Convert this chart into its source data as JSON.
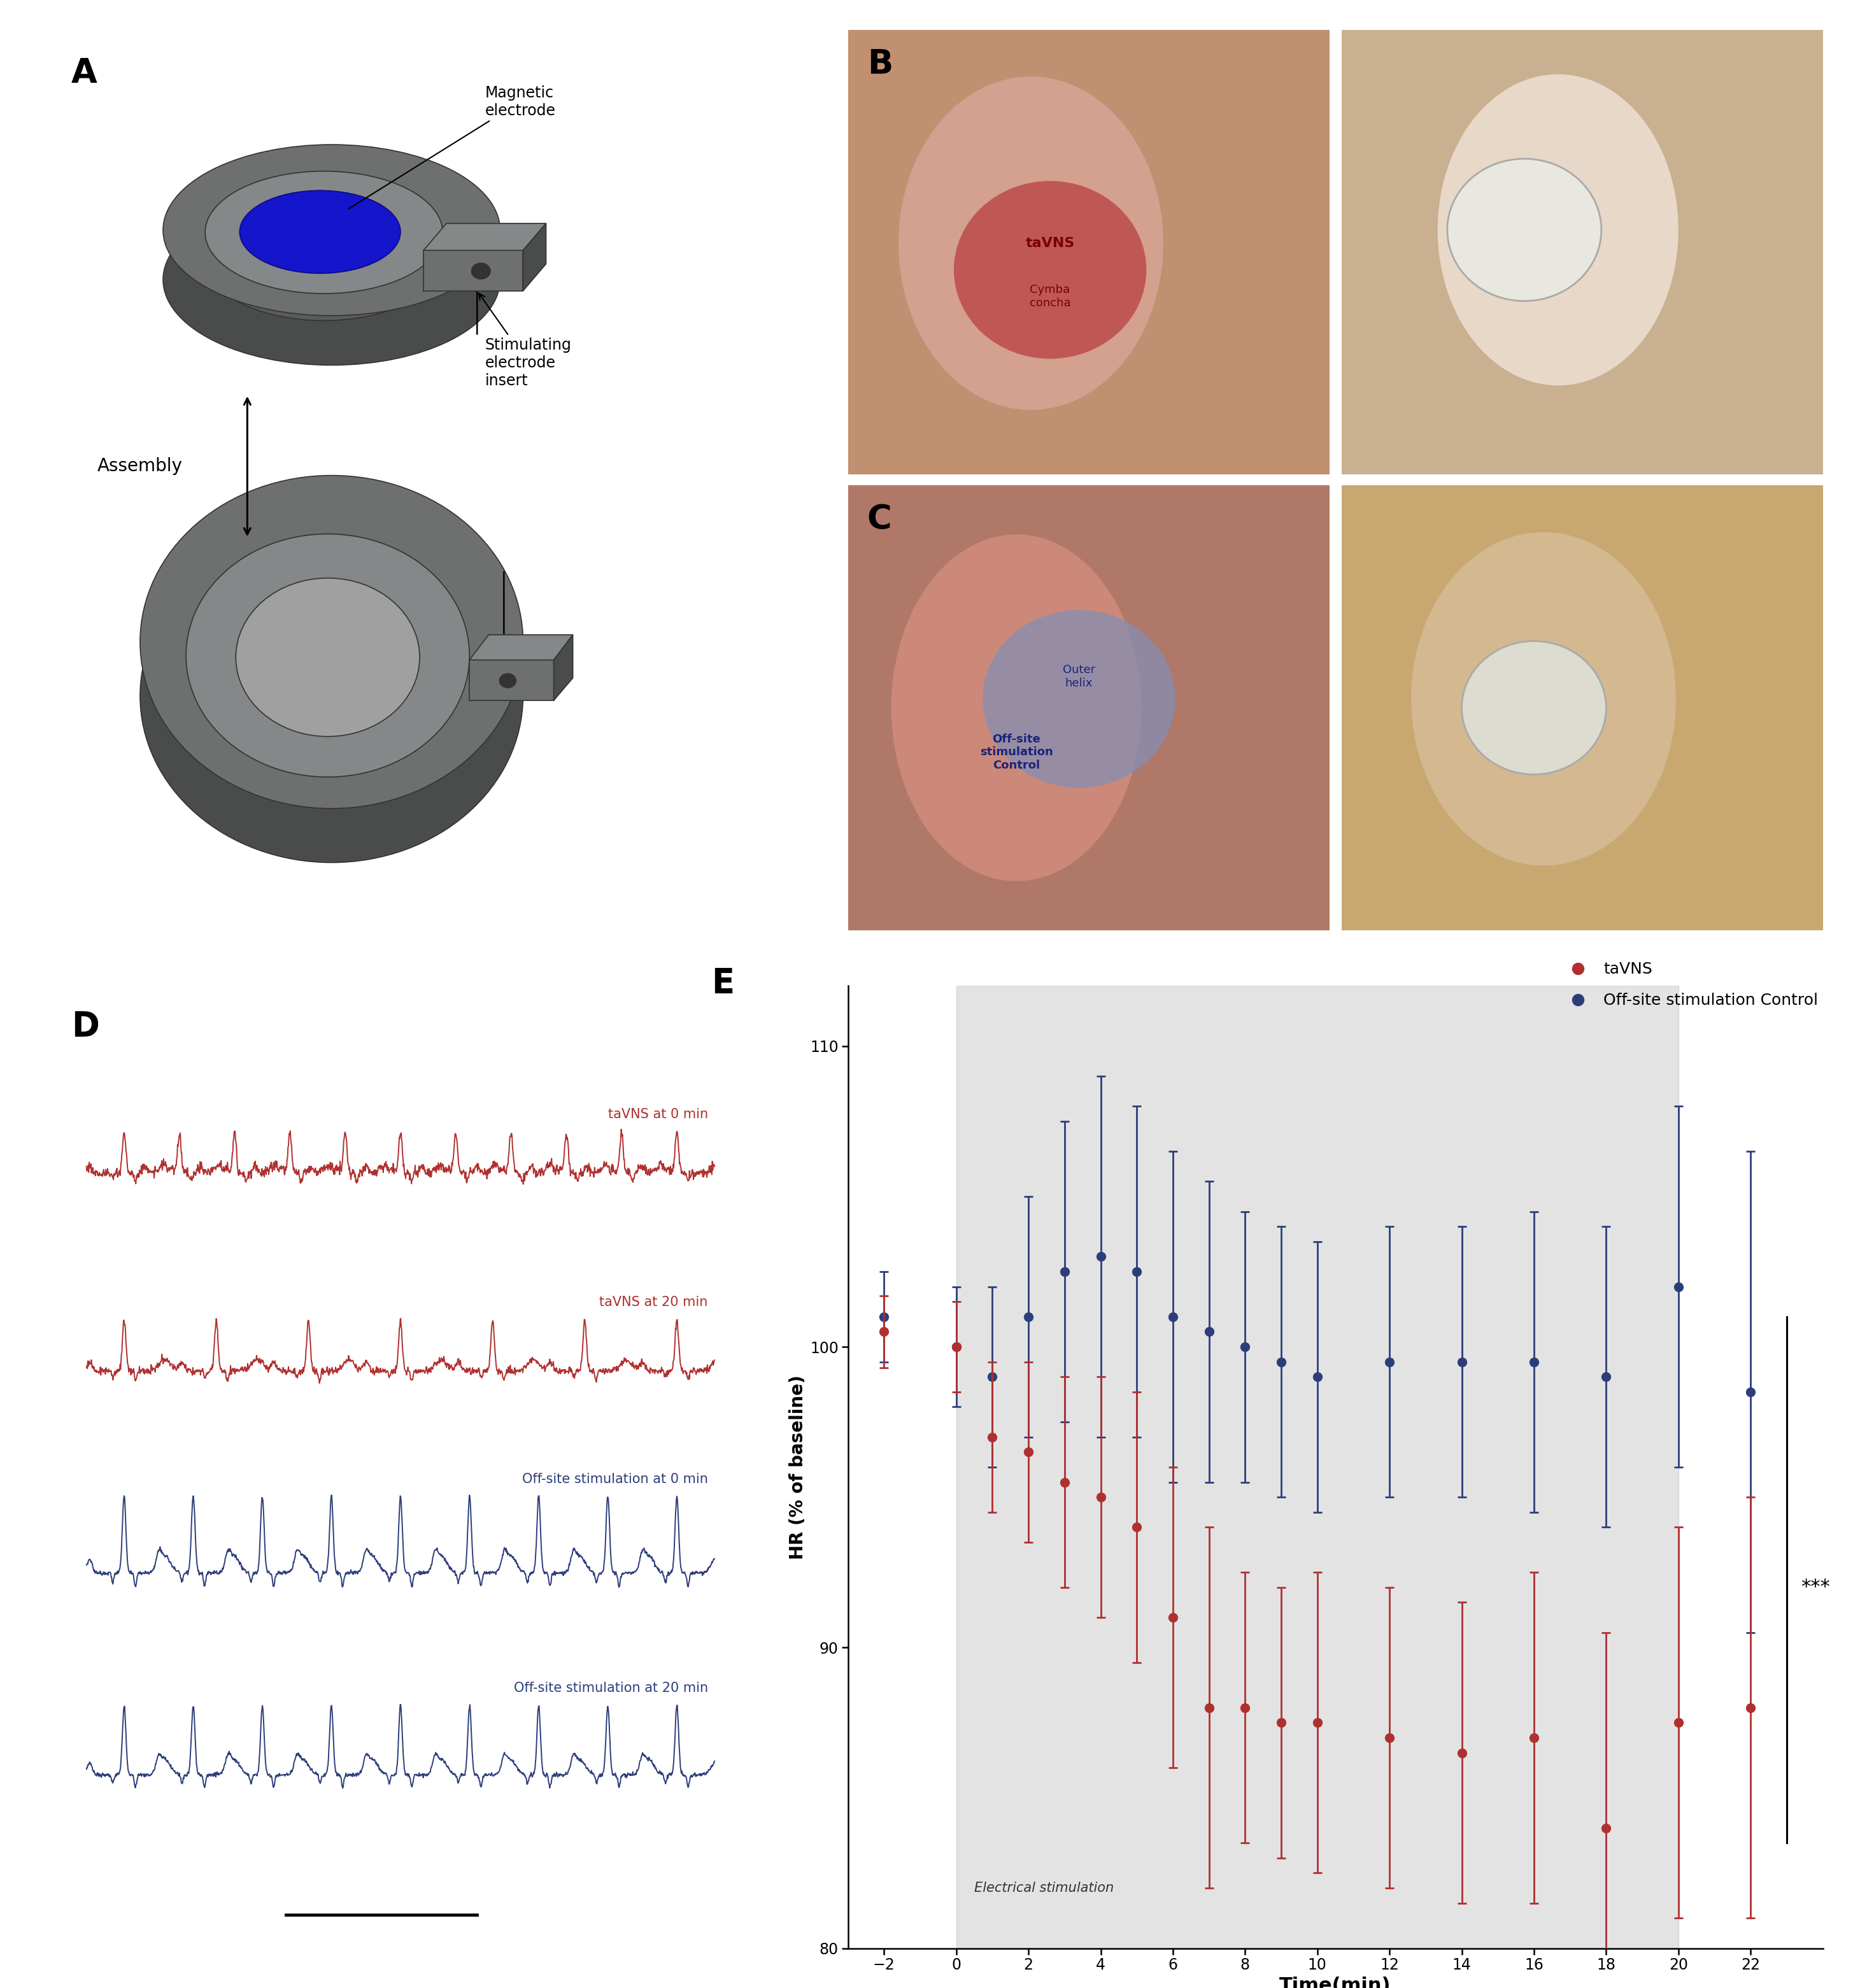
{
  "panel_labels": [
    "A",
    "B",
    "C",
    "D",
    "E"
  ],
  "panel_label_fontsize": 38,
  "panel_label_fontweight": "bold",
  "background_color": "#ffffff",
  "tavns_color": "#B03030",
  "control_color": "#2C3E7A",
  "time_points": [
    -2,
    0,
    1,
    2,
    3,
    4,
    5,
    6,
    7,
    8,
    9,
    10,
    12,
    14,
    16,
    18,
    20,
    22
  ],
  "tavns_hr": [
    100.5,
    100.0,
    97.0,
    96.5,
    95.5,
    95.0,
    94.0,
    91.0,
    88.0,
    88.0,
    87.5,
    87.5,
    87.0,
    86.5,
    87.0,
    84.0,
    87.5,
    88.0
  ],
  "tavns_err": [
    1.2,
    1.5,
    2.5,
    3.0,
    3.5,
    4.0,
    4.5,
    5.0,
    6.0,
    4.5,
    4.5,
    5.0,
    5.0,
    5.0,
    5.5,
    6.5,
    6.5,
    7.0
  ],
  "control_hr": [
    101.0,
    100.0,
    99.0,
    101.0,
    102.5,
    103.0,
    102.5,
    101.0,
    100.5,
    100.0,
    99.5,
    99.0,
    99.5,
    99.5,
    99.5,
    99.0,
    102.0,
    98.5
  ],
  "control_err": [
    1.5,
    2.0,
    3.0,
    4.0,
    5.0,
    6.0,
    5.5,
    5.5,
    5.0,
    4.5,
    4.5,
    4.5,
    4.5,
    4.5,
    5.0,
    5.0,
    6.0,
    8.0
  ],
  "ylim": [
    80,
    112
  ],
  "yticks": [
    80,
    90,
    100,
    110
  ],
  "xticks": [
    -2,
    0,
    2,
    4,
    6,
    8,
    10,
    12,
    14,
    16,
    18,
    20,
    22
  ],
  "xlabel": "Time(min)",
  "ylabel": "HR (% of baseline)",
  "stim_region_start": 0,
  "stim_region_end": 20,
  "stim_label": "Electrical stimulation",
  "significance_label": "***",
  "ecg_labels": [
    "taVNS at 0 min",
    "taVNS at 20 min",
    "Off-site stimulation at 0 min",
    "Off-site stimulation at 20 min"
  ],
  "ecg_colors": [
    "#B03030",
    "#B03030",
    "#2C3E7A",
    "#2C3E7A"
  ],
  "legend_tavns": "taVNS",
  "legend_control": "Off-site stimulation Control",
  "mag_electrode_label": "Magnetic\nelectrode",
  "stim_electrode_label": "Stimulating\nelectrode\ninsert",
  "assembly_label": "Assembly",
  "tavns_ear_label": "taVNS",
  "cymba_label": "Cymba\nconcha",
  "outer_helix_label": "Outer\nhelix",
  "offsite_label": "Off-site\nstimulation\nControl",
  "b1_bg": "#b8917a",
  "b2_bg": "#c4a882",
  "c1_bg": "#b07a6a",
  "c2_bg": "#c8a870"
}
